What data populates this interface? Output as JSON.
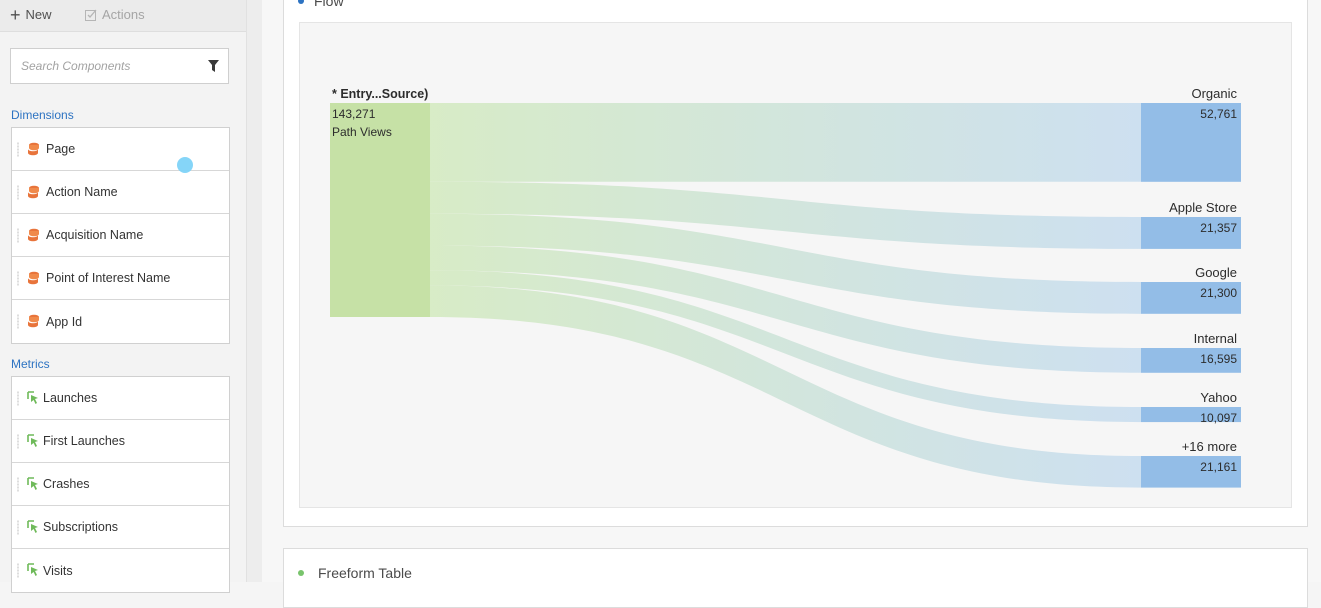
{
  "toolbar": {
    "new_label": "New",
    "actions_label": "Actions"
  },
  "search": {
    "placeholder": "Search Components"
  },
  "dimensions": {
    "title": "Dimensions",
    "items": [
      "Page",
      "Action Name",
      "Acquisition Name",
      "Point of Interest Name",
      "App Id"
    ]
  },
  "metrics": {
    "title": "Metrics",
    "items": [
      "Launches",
      "First Launches",
      "Crashes",
      "Subscriptions",
      "Visits"
    ]
  },
  "flow_panel": {
    "title": "Flow"
  },
  "freeform_panel": {
    "title": "Freeform Table"
  },
  "colors": {
    "source_node": "#c6e1a6",
    "dest_node": "#93bde7",
    "accent": "#2d73c2"
  },
  "flow": {
    "source": {
      "label": "* Entry...Source)",
      "value": "143,271",
      "metric": "Path Views",
      "total": 143271
    },
    "destinations": [
      {
        "label": "Organic",
        "value": "52,761",
        "count": 52761
      },
      {
        "label": "Apple Store",
        "value": "21,357",
        "count": 21357
      },
      {
        "label": "Google",
        "value": "21,300",
        "count": 21300
      },
      {
        "label": "Internal",
        "value": "16,595",
        "count": 16595
      },
      {
        "label": "Yahoo",
        "value": "10,097",
        "count": 10097
      },
      {
        "label": "+16 more",
        "value": "21,161",
        "count": 21161
      }
    ]
  }
}
